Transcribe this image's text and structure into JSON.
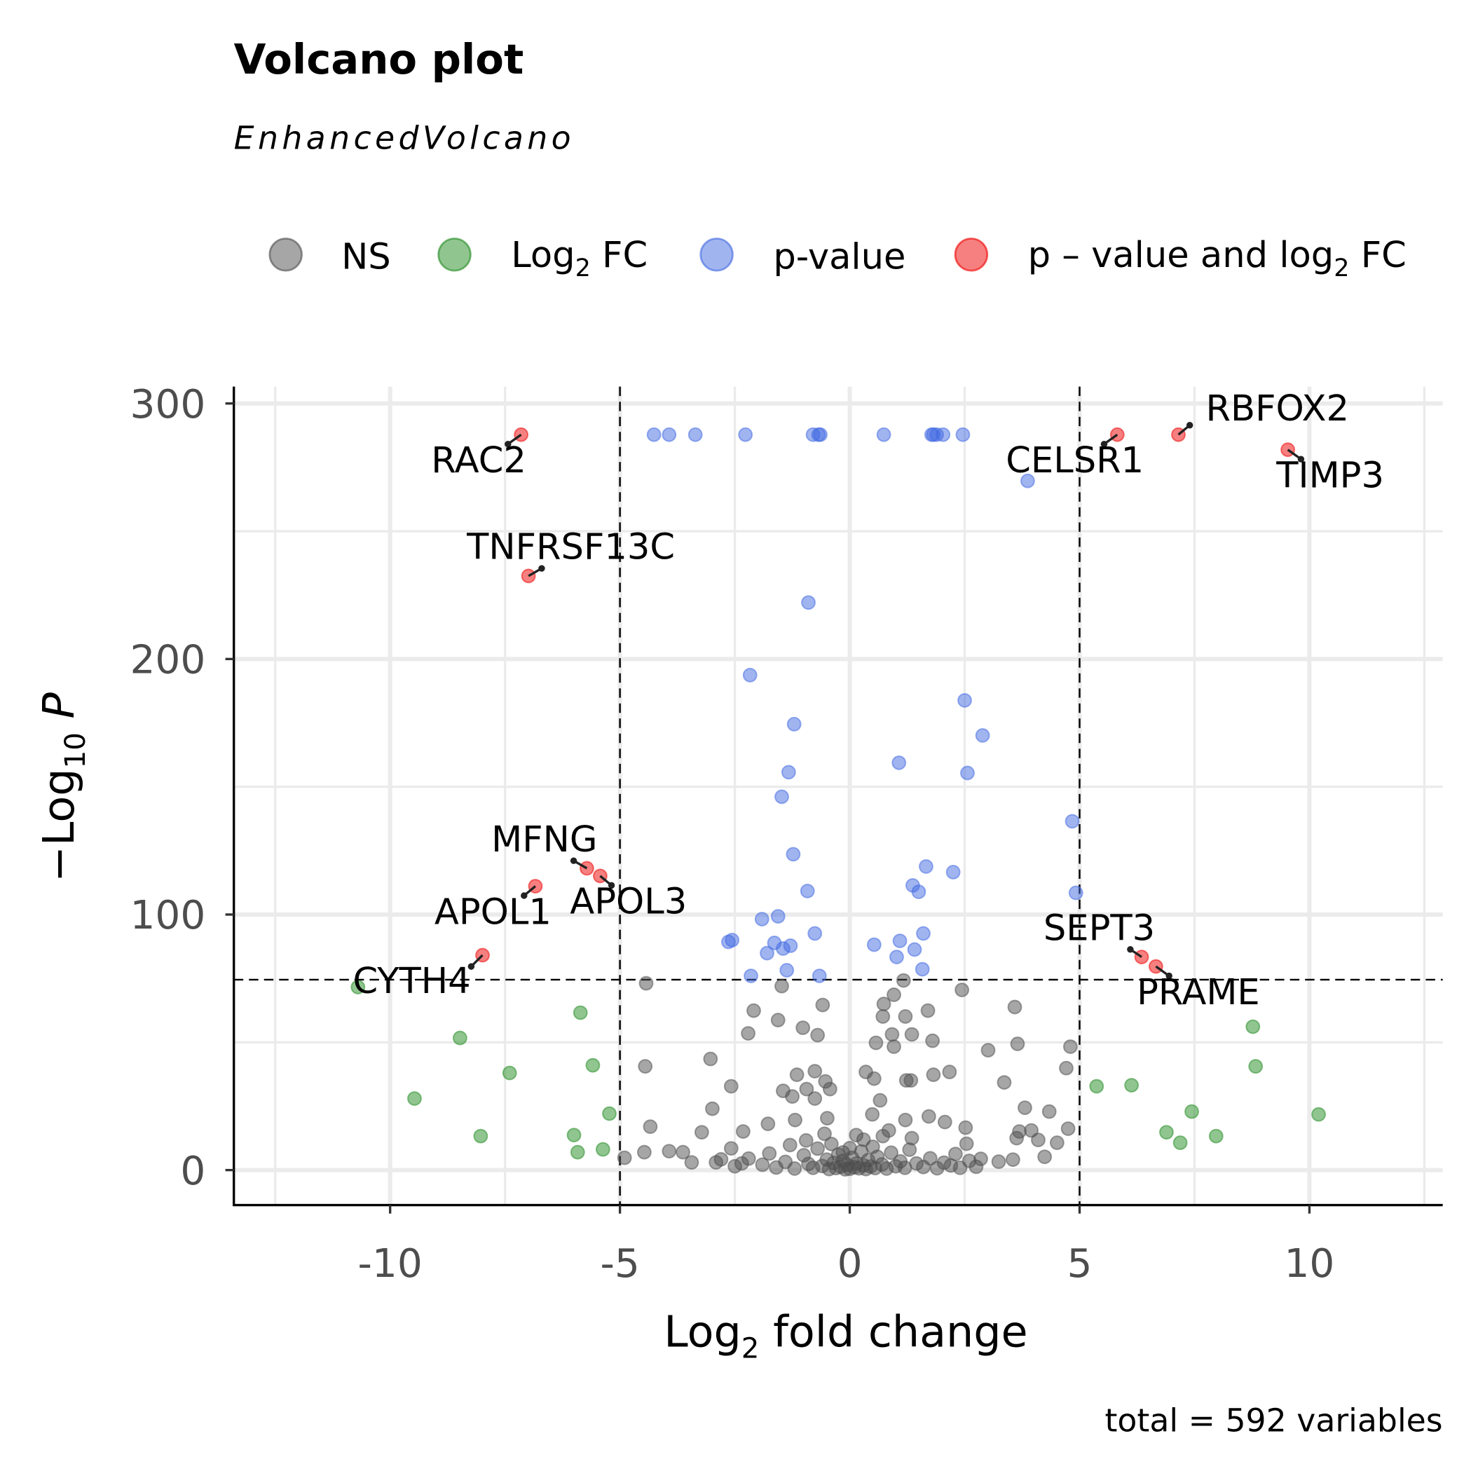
{
  "chart_data": {
    "type": "scatter",
    "title": "Volcano plot",
    "subtitle": "EnhancedVolcano",
    "caption": "total = 592 variables",
    "xlabel": {
      "main": "Log",
      "sub": "2",
      "rest": " fold change"
    },
    "ylabel": {
      "prefix": "−Log",
      "sub": "10",
      "italic": " P"
    },
    "xlim": [
      -13.4,
      12.9
    ],
    "ylim": [
      -13.7,
      306.6
    ],
    "x_ticks": [
      "-10",
      "-5",
      "0",
      "5",
      "10"
    ],
    "x_tick_values": [
      -10,
      -5,
      0,
      5,
      10
    ],
    "y_ticks": [
      "0",
      "100",
      "200",
      "300"
    ],
    "y_tick_values": [
      0,
      100,
      200,
      300
    ],
    "grid": true,
    "cutoffs": {
      "log2fc": [
        -5,
        5
      ],
      "neg_log10_p": 74.5
    },
    "legend": {
      "placement": "top",
      "items": [
        {
          "key": "ns",
          "label": "NS",
          "color": "#4D4D4D"
        },
        {
          "key": "fc",
          "label_main": "Log",
          "label_sub": "2",
          "label_rest": " FC",
          "color": "#228B22"
        },
        {
          "key": "p",
          "label": "p-value",
          "color": "#4169E1"
        },
        {
          "key": "both",
          "label_main": "p – value and log",
          "label_sub": "2",
          "label_rest": " FC",
          "color": "#EE0000"
        }
      ]
    },
    "series": [
      {
        "name": "p-value and log2 FC",
        "color": "#EE0000",
        "points": [
          {
            "gene": "RAC2",
            "x": -7.15,
            "y": 287.8
          },
          {
            "gene": "TNFRSF13C",
            "x": -6.99,
            "y": 232.5
          },
          {
            "gene": "MFNG",
            "x": -5.72,
            "y": 118.1
          },
          {
            "gene": "APOL3",
            "x": -5.43,
            "y": 115.1
          },
          {
            "gene": "APOL1",
            "x": -6.84,
            "y": 111.1
          },
          {
            "gene": "CYTH4",
            "x": -7.99,
            "y": 84.1
          },
          {
            "gene": "CELSR1",
            "x": 5.82,
            "y": 287.8
          },
          {
            "gene": "RBFOX2",
            "x": 7.15,
            "y": 287.8
          },
          {
            "gene": "TIMP3",
            "x": 9.53,
            "y": 281.9
          },
          {
            "gene": "SEPT3",
            "x": 6.35,
            "y": 83.4
          },
          {
            "gene": "PRAME",
            "x": 6.66,
            "y": 79.7
          }
        ]
      },
      {
        "name": "p-value",
        "color": "#4169E1",
        "points": [
          [
            -4.26,
            287.8
          ],
          [
            -3.93,
            287.8
          ],
          [
            -3.36,
            287.8
          ],
          [
            -2.27,
            287.8
          ],
          [
            -0.8,
            287.8
          ],
          [
            -0.68,
            287.8
          ],
          [
            -0.64,
            287.8
          ],
          [
            0.74,
            287.8
          ],
          [
            1.78,
            287.8
          ],
          [
            1.82,
            287.8
          ],
          [
            1.89,
            287.8
          ],
          [
            2.03,
            287.8
          ],
          [
            2.46,
            287.8
          ],
          [
            3.87,
            269.7
          ],
          [
            -0.9,
            222.1
          ],
          [
            -2.17,
            193.7
          ],
          [
            2.5,
            183.8
          ],
          [
            -1.21,
            174.5
          ],
          [
            2.89,
            170.1
          ],
          [
            1.07,
            159.4
          ],
          [
            -1.33,
            155.7
          ],
          [
            2.56,
            155.4
          ],
          [
            -1.48,
            146.1
          ],
          [
            4.84,
            136.5
          ],
          [
            -1.23,
            123.6
          ],
          [
            1.66,
            118.8
          ],
          [
            2.25,
            116.6
          ],
          [
            1.37,
            111.4
          ],
          [
            -0.92,
            109.2
          ],
          [
            1.5,
            108.9
          ],
          [
            4.92,
            108.5
          ],
          [
            -1.56,
            99.3
          ],
          [
            -1.91,
            98.2
          ],
          [
            1.6,
            92.6
          ],
          [
            -0.76,
            92.6
          ],
          [
            -2.56,
            90.0
          ],
          [
            -2.64,
            89.3
          ],
          [
            0.53,
            88.2
          ],
          [
            1.09,
            89.7
          ],
          [
            -1.64,
            88.9
          ],
          [
            -1.29,
            87.8
          ],
          [
            -1.45,
            86.7
          ],
          [
            1.41,
            86.3
          ],
          [
            -1.8,
            84.9
          ],
          [
            1.02,
            83.4
          ],
          [
            -1.37,
            78.2
          ],
          [
            1.58,
            78.6
          ],
          [
            -2.15,
            76.0
          ],
          [
            -0.66,
            76.0
          ]
        ]
      },
      {
        "name": "Log2 FC",
        "color": "#228B22",
        "points": [
          [
            -10.7,
            71.6
          ],
          [
            -5.86,
            61.6
          ],
          [
            -8.48,
            51.7
          ],
          [
            -5.59,
            41.0
          ],
          [
            -7.4,
            38.0
          ],
          [
            -9.47,
            28.0
          ],
          [
            -5.23,
            22.1
          ],
          [
            -6.0,
            13.7
          ],
          [
            -8.03,
            13.3
          ],
          [
            -5.92,
            7.0
          ],
          [
            -5.37,
            8.1
          ],
          [
            8.77,
            56.1
          ],
          [
            8.83,
            40.6
          ],
          [
            5.37,
            32.8
          ],
          [
            6.13,
            33.2
          ],
          [
            7.44,
            22.9
          ],
          [
            10.2,
            21.8
          ],
          [
            6.89,
            14.8
          ],
          [
            7.97,
            13.3
          ],
          [
            7.19,
            10.7
          ]
        ]
      },
      {
        "name": "NS",
        "color": "#4D4D4D",
        "points": [
          [
            -4.43,
            73.1
          ],
          [
            3.59,
            63.8
          ],
          [
            -2.09,
            62.4
          ],
          [
            -0.59,
            64.6
          ],
          [
            0.74,
            65.0
          ],
          [
            0.96,
            68.6
          ],
          [
            1.7,
            62.4
          ],
          [
            2.44,
            70.5
          ],
          [
            1.17,
            74.2
          ],
          [
            -1.48,
            72.0
          ],
          [
            0.72,
            60.1
          ],
          [
            1.21,
            60.1
          ],
          [
            -1.56,
            58.7
          ],
          [
            -1.02,
            55.7
          ],
          [
            -2.21,
            53.5
          ],
          [
            -0.7,
            52.8
          ],
          [
            0.57,
            49.8
          ],
          [
            0.92,
            53.1
          ],
          [
            1.35,
            53.1
          ],
          [
            3.65,
            49.4
          ],
          [
            4.8,
            48.3
          ],
          [
            3.01,
            46.9
          ],
          [
            1.8,
            50.6
          ],
          [
            0.96,
            48.3
          ],
          [
            -3.03,
            43.5
          ],
          [
            -4.45,
            40.6
          ],
          [
            4.71,
            39.9
          ],
          [
            3.36,
            34.3
          ],
          [
            0.35,
            38.4
          ],
          [
            0.53,
            35.8
          ],
          [
            2.17,
            38.4
          ],
          [
            1.82,
            37.3
          ],
          [
            -1.15,
            37.3
          ],
          [
            -0.76,
            38.7
          ],
          [
            -0.53,
            34.7
          ],
          [
            -0.43,
            31.7
          ],
          [
            1.23,
            35.1
          ],
          [
            1.33,
            35.1
          ],
          [
            -1.45,
            31.0
          ],
          [
            -2.58,
            32.8
          ],
          [
            -0.94,
            31.7
          ],
          [
            -1.25,
            28.8
          ],
          [
            -0.76,
            28.0
          ],
          [
            0.66,
            27.3
          ],
          [
            3.81,
            24.4
          ],
          [
            4.34,
            22.9
          ],
          [
            -2.99,
            24.0
          ],
          [
            0.49,
            21.8
          ],
          [
            1.21,
            19.6
          ],
          [
            1.72,
            21.0
          ],
          [
            2.07,
            18.8
          ],
          [
            -0.49,
            20.3
          ],
          [
            -1.19,
            19.6
          ],
          [
            -1.78,
            18.1
          ],
          [
            -4.34,
            17.0
          ],
          [
            -3.22,
            14.8
          ],
          [
            -2.32,
            15.1
          ],
          [
            2.52,
            16.6
          ],
          [
            3.69,
            15.1
          ],
          [
            3.95,
            15.5
          ],
          [
            4.75,
            16.2
          ],
          [
            3.63,
            12.5
          ],
          [
            4.1,
            11.8
          ],
          [
            4.51,
            10.7
          ],
          [
            0.14,
            13.7
          ],
          [
            0.72,
            13.3
          ],
          [
            1.35,
            12.5
          ],
          [
            -4.47,
            7.0
          ],
          [
            -3.93,
            7.4
          ],
          [
            -3.63,
            7.0
          ],
          [
            -2.58,
            8.5
          ],
          [
            2.54,
            10.3
          ],
          [
            4.24,
            5.2
          ],
          [
            3.24,
            3.3
          ],
          [
            3.55,
            4.1
          ],
          [
            -4.9,
            4.8
          ],
          [
            -3.44,
            3.0
          ],
          [
            -2.91,
            3.0
          ],
          [
            2.85,
            4.4
          ],
          [
            2.3,
            6.3
          ],
          [
            -2.2,
            4.5
          ],
          [
            -1.9,
            2.1
          ],
          [
            -1.6,
            1.0
          ],
          [
            -1.4,
            3.2
          ],
          [
            -1.2,
            0.6
          ],
          [
            -1.0,
            5.8
          ],
          [
            -0.9,
            2.4
          ],
          [
            -0.8,
            0.9
          ],
          [
            -0.7,
            8.4
          ],
          [
            -0.6,
            1.6
          ],
          [
            -0.5,
            4.1
          ],
          [
            -0.45,
            0.4
          ],
          [
            -0.4,
            10.2
          ],
          [
            -0.35,
            2.8
          ],
          [
            -0.3,
            0.8
          ],
          [
            -0.25,
            6.1
          ],
          [
            -0.2,
            1.3
          ],
          [
            -0.15,
            3.6
          ],
          [
            -0.1,
            0.3
          ],
          [
            -0.05,
            2.0
          ],
          [
            0.0,
            0.5
          ],
          [
            0.05,
            4.8
          ],
          [
            0.1,
            1.1
          ],
          [
            0.15,
            2.6
          ],
          [
            0.2,
            0.7
          ],
          [
            0.25,
            7.3
          ],
          [
            0.3,
            1.9
          ],
          [
            0.35,
            0.4
          ],
          [
            0.4,
            3.9
          ],
          [
            0.45,
            1.4
          ],
          [
            0.5,
            9.1
          ],
          [
            0.55,
            0.8
          ],
          [
            0.6,
            5.2
          ],
          [
            0.7,
            2.2
          ],
          [
            0.8,
            0.6
          ],
          [
            0.9,
            6.8
          ],
          [
            1.0,
            1.5
          ],
          [
            1.1,
            3.4
          ],
          [
            1.2,
            0.9
          ],
          [
            1.3,
            8.0
          ],
          [
            1.45,
            2.6
          ],
          [
            1.6,
            1.2
          ],
          [
            1.75,
            4.6
          ],
          [
            1.9,
            0.7
          ],
          [
            2.05,
            2.9
          ],
          [
            2.2,
            1.8
          ],
          [
            2.4,
            0.9
          ],
          [
            2.6,
            3.6
          ],
          [
            -2.5,
            1.5
          ],
          [
            -2.8,
            4.2
          ],
          [
            -1.75,
            6.5
          ],
          [
            -1.3,
            9.8
          ],
          [
            -0.95,
            11.6
          ],
          [
            -0.55,
            14.2
          ],
          [
            0.0,
            8.6
          ],
          [
            0.3,
            11.9
          ],
          [
            0.85,
            15.5
          ],
          [
            -0.15,
            6.9
          ],
          [
            2.75,
            1.3
          ],
          [
            -2.35,
            2.6
          ]
        ]
      }
    ]
  }
}
